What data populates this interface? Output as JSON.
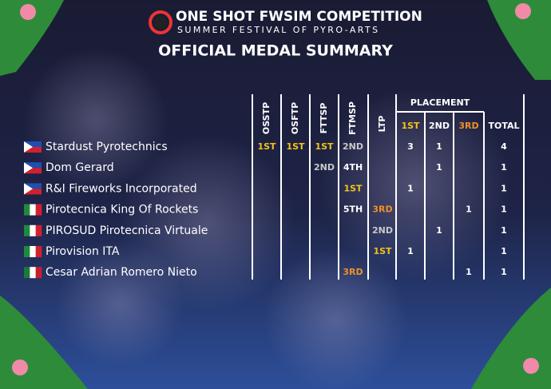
{
  "header": {
    "title": "ONE SHOT FWSIM COMPETITION",
    "subtitle": "SUMMER FESTIVAL OF PYRO-ARTS",
    "heading": "OFFICIAL MEDAL SUMMARY"
  },
  "table": {
    "event_columns": [
      "OSSTP",
      "OSFTP",
      "FTTSP",
      "FTMSP",
      "LTP"
    ],
    "placement_group": "PLACEMENT",
    "placement_columns": [
      {
        "text": "1ST",
        "color": "#f2c21b"
      },
      {
        "text": "2ND",
        "color": "#ffffff"
      },
      {
        "text": "3RD",
        "color": "#f0902a"
      }
    ],
    "total_column": "TOTAL",
    "rows": [
      {
        "name": "Stardust Pyrotechnics",
        "events": [
          {
            "text": "1ST",
            "color": "#f2c21b"
          },
          {
            "text": "1ST",
            "color": "#f2c21b"
          },
          {
            "text": "1ST",
            "color": "#f2c21b"
          },
          {
            "text": "2ND",
            "color": "#c9c9c9"
          },
          null
        ],
        "placements": [
          3,
          1,
          null
        ],
        "total": 4
      },
      {
        "name": "Dom Gerard",
        "events": [
          null,
          null,
          {
            "text": "2ND",
            "color": "#c9c9c9"
          },
          {
            "text": "4TH",
            "color": "#ffffff"
          },
          null
        ],
        "placements": [
          null,
          1,
          null
        ],
        "total": 1
      },
      {
        "name": "R&I Fireworks Incorporated",
        "events": [
          null,
          null,
          null,
          {
            "text": "1ST",
            "color": "#f2c21b"
          },
          null
        ],
        "placements": [
          1,
          null,
          null
        ],
        "total": 1
      },
      {
        "name": "Pirotecnica King Of Rockets",
        "events": [
          null,
          null,
          null,
          {
            "text": "5TH",
            "color": "#ffffff"
          },
          {
            "text": "3RD",
            "color": "#f0902a"
          }
        ],
        "placements": [
          null,
          null,
          1
        ],
        "total": 1
      },
      {
        "name": "PIROSUD Pirotecnica Virtuale",
        "events": [
          null,
          null,
          null,
          null,
          {
            "text": "2ND",
            "color": "#c9c9c9"
          }
        ],
        "placements": [
          null,
          1,
          null
        ],
        "total": 1
      },
      {
        "name": "Pirovision ITA",
        "events": [
          null,
          null,
          null,
          null,
          {
            "text": "1ST",
            "color": "#f2c21b"
          }
        ],
        "placements": [
          1,
          null,
          null
        ],
        "total": 1
      },
      {
        "name": "Cesar Adrian Romero Nieto",
        "events": [
          null,
          null,
          null,
          {
            "text": "3RD",
            "color": "#f0902a"
          },
          null
        ],
        "placements": [
          null,
          null,
          1
        ],
        "total": 1
      }
    ]
  }
}
